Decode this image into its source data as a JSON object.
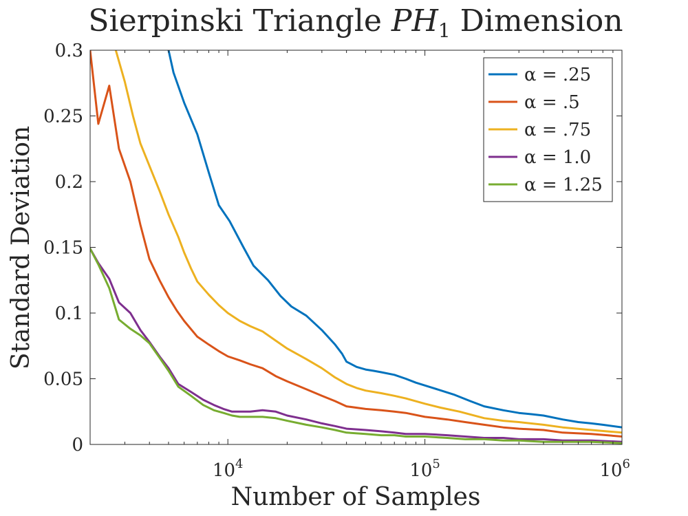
{
  "chart_data": {
    "type": "line",
    "title_prefix": "Sierpinski Triangle ",
    "title_math": "PH",
    "title_sub": "1",
    "title_suffix": " Dimension",
    "xlabel": "Number of Samples",
    "ylabel": "Standard Deviation",
    "xscale": "log",
    "xlim": [
      2000,
      1000000
    ],
    "ylim": [
      0,
      0.3
    ],
    "yticks": [
      0,
      0.05,
      0.1,
      0.15,
      0.2,
      0.25,
      0.3
    ],
    "ytick_labels": [
      "0",
      "0.05",
      "0.1",
      "0.15",
      "0.2",
      "0.25",
      "0.3"
    ],
    "xticks": [
      10000,
      100000,
      1000000
    ],
    "xtick_bases": [
      "10",
      "10",
      "10"
    ],
    "xtick_exponents": [
      "4",
      "5",
      "6"
    ],
    "legend_location": "top-right",
    "series": [
      {
        "name": "α = .25",
        "color": "#0072BD",
        "x": [
          5000,
          5300,
          6000,
          7000,
          8000,
          9000,
          10200,
          12000,
          13500,
          16000,
          18500,
          21000,
          25000,
          30000,
          35000,
          38000,
          40000,
          45000,
          50000,
          55000,
          60000,
          70000,
          80000,
          90000,
          110000,
          140000,
          170000,
          200000,
          250000,
          300000,
          350000,
          400000,
          500000,
          600000,
          700000,
          800000,
          1000000
        ],
        "y": [
          0.3,
          0.283,
          0.26,
          0.236,
          0.207,
          0.182,
          0.17,
          0.15,
          0.136,
          0.125,
          0.113,
          0.105,
          0.098,
          0.087,
          0.076,
          0.069,
          0.063,
          0.059,
          0.057,
          0.056,
          0.055,
          0.053,
          0.05,
          0.047,
          0.043,
          0.038,
          0.033,
          0.029,
          0.026,
          0.024,
          0.023,
          0.022,
          0.019,
          0.017,
          0.016,
          0.015,
          0.013
        ]
      },
      {
        "name": "α = .5",
        "color": "#D95319",
        "x": [
          2000,
          2200,
          2500,
          2800,
          3200,
          3600,
          4000,
          4500,
          5000,
          5500,
          6000,
          7000,
          8000,
          9000,
          10000,
          11500,
          13000,
          15000,
          17500,
          20000,
          25000,
          30000,
          35000,
          40000,
          50000,
          60000,
          70000,
          80000,
          100000,
          130000,
          160000,
          200000,
          250000,
          300000,
          400000,
          500000,
          700000,
          1000000
        ],
        "y": [
          0.3,
          0.244,
          0.273,
          0.225,
          0.2,
          0.167,
          0.141,
          0.125,
          0.112,
          0.102,
          0.094,
          0.082,
          0.076,
          0.071,
          0.067,
          0.064,
          0.061,
          0.058,
          0.052,
          0.048,
          0.042,
          0.037,
          0.033,
          0.029,
          0.027,
          0.026,
          0.025,
          0.024,
          0.021,
          0.019,
          0.017,
          0.015,
          0.013,
          0.012,
          0.011,
          0.009,
          0.008,
          0.006
        ]
      },
      {
        "name": "α = .75",
        "color": "#EDB120",
        "x": [
          2700,
          3000,
          3300,
          3600,
          4000,
          4500,
          5000,
          5600,
          6000,
          6500,
          7000,
          8000,
          9000,
          10000,
          11500,
          13000,
          15000,
          17500,
          20000,
          25000,
          30000,
          35000,
          40000,
          45000,
          50000,
          60000,
          70000,
          80000,
          100000,
          120000,
          150000,
          200000,
          250000,
          300000,
          400000,
          500000,
          700000,
          1000000
        ],
        "y": [
          0.3,
          0.276,
          0.25,
          0.229,
          0.212,
          0.193,
          0.175,
          0.158,
          0.146,
          0.134,
          0.124,
          0.114,
          0.106,
          0.1,
          0.094,
          0.09,
          0.086,
          0.079,
          0.073,
          0.065,
          0.058,
          0.051,
          0.046,
          0.043,
          0.041,
          0.039,
          0.037,
          0.035,
          0.031,
          0.028,
          0.025,
          0.02,
          0.018,
          0.017,
          0.015,
          0.013,
          0.011,
          0.009
        ]
      },
      {
        "name": "α = 1.0",
        "color": "#7E2F8E",
        "x": [
          2000,
          2200,
          2500,
          2800,
          3200,
          3600,
          4000,
          4500,
          5000,
          5600,
          6500,
          7500,
          8500,
          9500,
          10500,
          11500,
          13000,
          15000,
          17500,
          20000,
          25000,
          30000,
          35000,
          40000,
          50000,
          60000,
          70000,
          80000,
          100000,
          130000,
          160000,
          200000,
          250000,
          300000,
          400000,
          500000,
          700000,
          1000000
        ],
        "y": [
          0.149,
          0.138,
          0.126,
          0.108,
          0.1,
          0.087,
          0.078,
          0.067,
          0.058,
          0.046,
          0.04,
          0.034,
          0.03,
          0.027,
          0.025,
          0.025,
          0.025,
          0.026,
          0.025,
          0.022,
          0.019,
          0.016,
          0.014,
          0.012,
          0.011,
          0.01,
          0.009,
          0.008,
          0.008,
          0.007,
          0.006,
          0.005,
          0.005,
          0.004,
          0.004,
          0.003,
          0.003,
          0.002
        ]
      },
      {
        "name": "α = 1.25",
        "color": "#77AC30",
        "x": [
          2000,
          2200,
          2500,
          2800,
          3200,
          3600,
          4000,
          4500,
          5000,
          5600,
          6500,
          7500,
          8500,
          9500,
          10500,
          11500,
          13000,
          15000,
          17500,
          20000,
          25000,
          30000,
          35000,
          40000,
          50000,
          60000,
          70000,
          80000,
          100000,
          130000,
          160000,
          200000,
          250000,
          300000,
          400000,
          500000,
          700000,
          1000000
        ],
        "y": [
          0.149,
          0.137,
          0.119,
          0.095,
          0.088,
          0.083,
          0.077,
          0.066,
          0.056,
          0.044,
          0.037,
          0.03,
          0.026,
          0.024,
          0.022,
          0.021,
          0.021,
          0.021,
          0.02,
          0.018,
          0.015,
          0.013,
          0.011,
          0.009,
          0.008,
          0.007,
          0.007,
          0.006,
          0.006,
          0.005,
          0.004,
          0.004,
          0.003,
          0.003,
          0.002,
          0.002,
          0.002,
          0.001
        ]
      }
    ]
  }
}
